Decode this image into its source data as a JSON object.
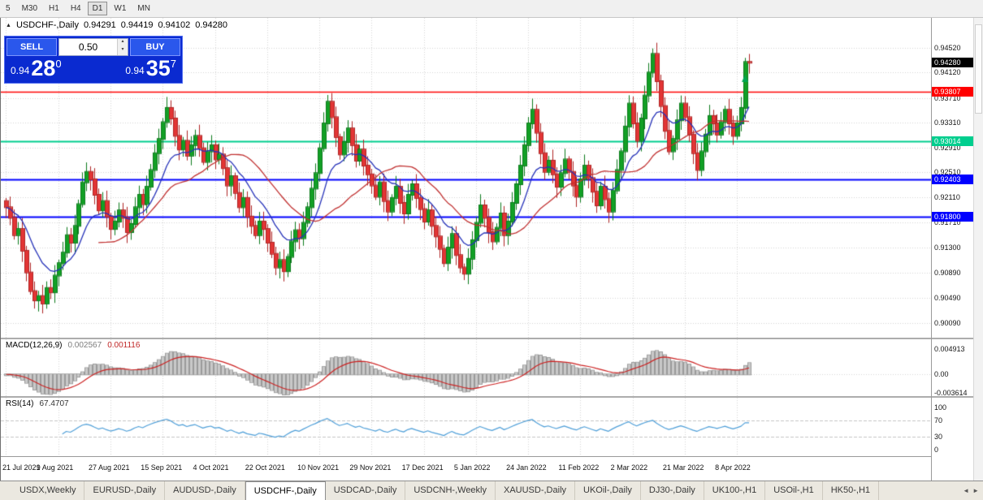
{
  "icons": {
    "collapse": "▲",
    "spinner_up": "▴",
    "spinner_down": "▾",
    "tab_scroll_left": "◄",
    "tab_scroll_right": "►"
  },
  "toolbar": {
    "timeframes": [
      {
        "label": "5",
        "active": false
      },
      {
        "label": "M30",
        "active": false
      },
      {
        "label": "H1",
        "active": false
      },
      {
        "label": "H4",
        "active": false
      },
      {
        "label": "D1",
        "active": true
      },
      {
        "label": "W1",
        "active": false
      },
      {
        "label": "MN",
        "active": false
      }
    ]
  },
  "chart": {
    "symbol_title": "USDCHF-,Daily",
    "ohlc": {
      "open": "0.94291",
      "high": "0.94419",
      "low": "0.94102",
      "close": "0.94280"
    },
    "trade_panel": {
      "sell_label": "SELL",
      "buy_label": "BUY",
      "volume": "0.50",
      "sell_price": {
        "base": "0.94",
        "big": "28",
        "sup": "0"
      },
      "buy_price": {
        "base": "0.94",
        "big": "35",
        "sup": "7"
      }
    },
    "colors": {
      "background": "#FFFFFF",
      "grid": "#d4d4d4",
      "candle_up": "#12A025",
      "candle_up_border": "#0B7A1B",
      "candle_down": "#E23535",
      "candle_down_border": "#AE2222",
      "ma_fast": "#2430B8",
      "ma_slow": "#C03030",
      "macd_hist_fill": "#C9C9C9",
      "macd_hist_border": "#9B9B9B",
      "macd_signal": "#CC2222",
      "rsi_line": "#4F9FD8",
      "level_dash": "#C4C4C4",
      "trade_panel_bg": "#0A2AD0"
    },
    "hlines": [
      {
        "value": 0.93807,
        "color": "#FF0000",
        "width": 1.4
      },
      {
        "value": 0.93014,
        "color": "#00CE8E",
        "width": 1.8
      },
      {
        "value": 0.92403,
        "color": "#0000FF",
        "width": 1.8
      },
      {
        "value": 0.918,
        "color": "#0000FF",
        "width": 1.8
      }
    ],
    "price_tags": [
      {
        "text": "0.94280",
        "color": "#000000"
      },
      {
        "text": "0.93807",
        "color": "#FF0000"
      },
      {
        "text": "0.93014",
        "color": "#00CE8E"
      },
      {
        "text": "0.92403",
        "color": "#0000FF"
      },
      {
        "text": "0.91800",
        "color": "#0000FF"
      }
    ],
    "axis_labels": [
      "0.94520",
      "0.94120",
      "0.93710",
      "0.93310",
      "0.92910",
      "0.92510",
      "0.92110",
      "0.91710",
      "0.91300",
      "0.90890",
      "0.90490",
      "0.90090"
    ],
    "marker": {
      "index": 184,
      "price": 0.9402,
      "color": "#00A651"
    }
  },
  "macd": {
    "label": "MACD(12,26,9)",
    "value_main": "0.002567",
    "value_signal": "0.001116",
    "axis": [
      "0.004913",
      "0.00",
      "-0.003614"
    ]
  },
  "rsi": {
    "label": "RSI(14)",
    "value": "67.4707",
    "axis": [
      "100",
      "70",
      "30",
      "0"
    ]
  },
  "tabs": {
    "items": [
      {
        "label": "USDX,Weekly",
        "active": false
      },
      {
        "label": "EURUSD-,Daily",
        "active": false
      },
      {
        "label": "AUDUSD-,Daily",
        "active": false
      },
      {
        "label": "USDCHF-,Daily",
        "active": true
      },
      {
        "label": "USDCAD-,Daily",
        "active": false
      },
      {
        "label": "USDCNH-,Weekly",
        "active": false
      },
      {
        "label": "XAUUSD-,Daily",
        "active": false
      },
      {
        "label": "UKOil-,Daily",
        "active": false
      },
      {
        "label": "DJ30-,Daily",
        "active": false
      },
      {
        "label": "UK100-,H1",
        "active": false
      },
      {
        "label": "USOil-,H1",
        "active": false
      },
      {
        "label": "HK50-,H1",
        "active": false
      }
    ]
  },
  "chart_data": {
    "type": "candlestick",
    "symbol": "USDCHF",
    "period": "Daily",
    "title": "USDCHF-,Daily",
    "first_open": 0.9205,
    "closes": [
      0.9195,
      0.9178,
      0.915,
      0.916,
      0.9125,
      0.909,
      0.906,
      0.9045,
      0.9052,
      0.904,
      0.9065,
      0.9058,
      0.9085,
      0.9105,
      0.9122,
      0.915,
      0.9138,
      0.9165,
      0.92,
      0.9235,
      0.9252,
      0.924,
      0.9215,
      0.919,
      0.9205,
      0.918,
      0.916,
      0.9172,
      0.919,
      0.9178,
      0.9155,
      0.9168,
      0.9195,
      0.9215,
      0.92,
      0.9228,
      0.9255,
      0.9282,
      0.9305,
      0.9332,
      0.9355,
      0.9338,
      0.931,
      0.9288,
      0.9302,
      0.9278,
      0.9295,
      0.931,
      0.929,
      0.9268,
      0.9285,
      0.9295,
      0.9272,
      0.928,
      0.9258,
      0.923,
      0.9245,
      0.9218,
      0.9195,
      0.921,
      0.918,
      0.9165,
      0.915,
      0.9172,
      0.916,
      0.9138,
      0.912,
      0.9098,
      0.911,
      0.9092,
      0.9115,
      0.914,
      0.9158,
      0.9145,
      0.917,
      0.9195,
      0.9225,
      0.925,
      0.929,
      0.933,
      0.9365,
      0.934,
      0.9308,
      0.928,
      0.93,
      0.9322,
      0.9295,
      0.927,
      0.9288,
      0.9262,
      0.9248,
      0.923,
      0.9212,
      0.9235,
      0.9205,
      0.9188,
      0.921,
      0.9228,
      0.9202,
      0.9185,
      0.9215,
      0.9232,
      0.921,
      0.9192,
      0.9172,
      0.919,
      0.9165,
      0.9148,
      0.9128,
      0.9105,
      0.913,
      0.9152,
      0.9118,
      0.9098,
      0.9088,
      0.9112,
      0.9142,
      0.917,
      0.9198,
      0.9178,
      0.9155,
      0.914,
      0.9162,
      0.9185,
      0.915,
      0.9172,
      0.9202,
      0.9232,
      0.9262,
      0.9295,
      0.933,
      0.9352,
      0.9315,
      0.9282,
      0.9252,
      0.927,
      0.9248,
      0.9228,
      0.925,
      0.9272,
      0.9252,
      0.923,
      0.9212,
      0.924,
      0.9262,
      0.9242,
      0.922,
      0.9198,
      0.9228,
      0.9208,
      0.9188,
      0.9222,
      0.9255,
      0.9285,
      0.9325,
      0.9362,
      0.933,
      0.9302,
      0.9338,
      0.9375,
      0.9412,
      0.9442,
      0.9398,
      0.9358,
      0.9318,
      0.9285,
      0.9305,
      0.9335,
      0.9362,
      0.934,
      0.9312,
      0.9282,
      0.9255,
      0.9285,
      0.9312,
      0.9342,
      0.933,
      0.9312,
      0.9332,
      0.9352,
      0.933,
      0.931,
      0.933,
      0.9355,
      0.9429,
      0.9428
    ],
    "last_candle": {
      "open": 0.94291,
      "high": 0.94419,
      "low": 0.94102,
      "close": 0.9428
    },
    "current_price": 0.9428,
    "x_labels": [
      "21 Jul 2021",
      "9 Aug 2021",
      "27 Aug 2021",
      "15 Sep 2021",
      "4 Oct 2021",
      "22 Oct 2021",
      "10 Nov 2021",
      "29 Nov 2021",
      "17 Dec 2021",
      "5 Jan 2022",
      "24 Jan 2022",
      "11 Feb 2022",
      "2 Mar 2022",
      "21 Mar 2022",
      "8 Apr 2022"
    ],
    "x_label_indices": [
      0,
      13,
      26,
      39,
      52,
      65,
      78,
      91,
      104,
      117,
      130,
      143,
      156,
      169,
      182
    ],
    "price_range": [
      0.8985,
      0.95
    ],
    "right_offset_bars": 44,
    "horizontal_levels": [
      0.93807,
      0.93014,
      0.92403,
      0.918
    ],
    "indicators": {
      "ma_fast": {
        "type": "EMA",
        "period": 12
      },
      "ma_slow": {
        "type": "SMA",
        "period": 24
      },
      "macd": {
        "fast": 12,
        "slow": 26,
        "signal": 9,
        "main": 0.002567,
        "signal_value": 0.001116,
        "range": [
          -0.0042,
          0.0068
        ]
      },
      "rsi": {
        "period": 14,
        "value": 67.4707,
        "levels": [
          70,
          30
        ],
        "range": [
          0,
          100
        ]
      }
    }
  }
}
